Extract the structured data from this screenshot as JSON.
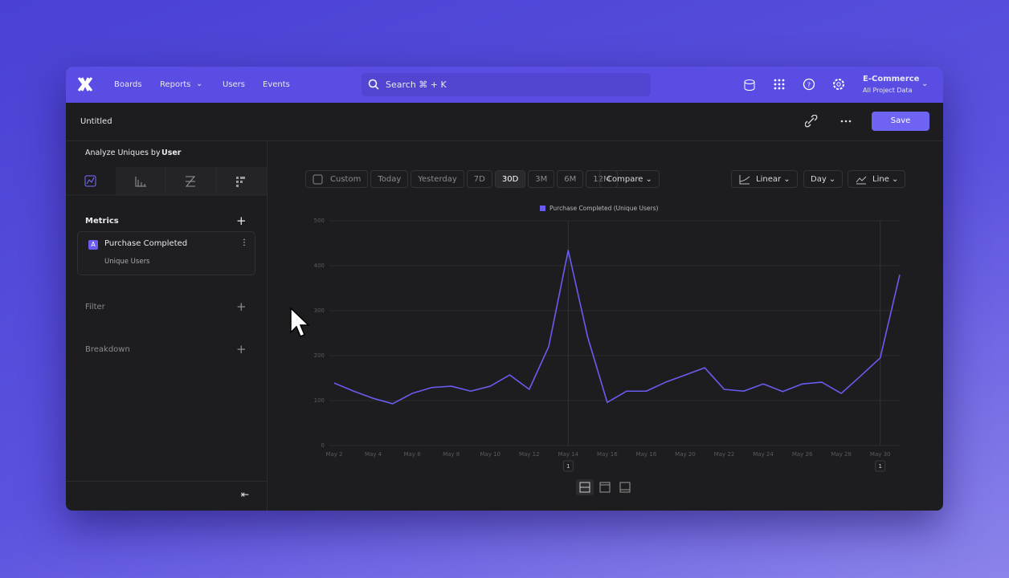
{
  "nav": {
    "items": [
      "Boards",
      "Reports",
      "Users",
      "Events"
    ],
    "search": "Search ⌘ + K",
    "project": "E-Commerce",
    "project_sub": "All Project Data"
  },
  "header": {
    "title": "Untitled",
    "save": "Save"
  },
  "sidebar": {
    "analyze_label": "Analyze Uniques by",
    "analyze_value": "User",
    "metrics_title": "Metrics",
    "metric": {
      "badge": "A",
      "name": "Purchase Completed",
      "sub": "Unique Users"
    },
    "filter": "Filter",
    "breakdown": "Breakdown"
  },
  "toolbar": {
    "ranges": [
      "Custom",
      "Today",
      "Yesterday",
      "7D",
      "30D",
      "3M",
      "6M",
      "12M"
    ],
    "active_range": "30D",
    "compare": "Compare",
    "scale": "Linear",
    "interval": "Day",
    "chart_type": "Line"
  },
  "chart_data": {
    "type": "line",
    "categories": [
      "May 2",
      null,
      "May 4",
      null,
      "May 6",
      null,
      "May 8",
      null,
      "May 10",
      null,
      "May 12",
      null,
      "May 14",
      null,
      "May 16",
      null,
      "May 18",
      null,
      "May 20",
      null,
      "May 22",
      null,
      "May 24",
      null,
      "May 26",
      null,
      "May 28",
      null,
      "May 30",
      null
    ],
    "series": [
      {
        "name": "Purchase Completed (Unique Users)",
        "color": "#6a5cf0",
        "values": [
          139,
          121,
          105,
          93,
          116,
          129,
          132,
          121,
          132,
          157,
          125,
          220,
          434,
          241,
          96,
          121,
          121,
          141,
          157,
          173,
          125,
          121,
          137,
          120,
          137,
          141,
          116,
          155,
          195,
          380
        ]
      }
    ],
    "ylim": [
      0,
      500
    ],
    "yticks": [
      0,
      100,
      200,
      300,
      400,
      500
    ],
    "grid": true,
    "annotations": [
      {
        "x": "May 14",
        "text": "1"
      },
      {
        "x": "May 30",
        "text": "1"
      }
    ]
  }
}
